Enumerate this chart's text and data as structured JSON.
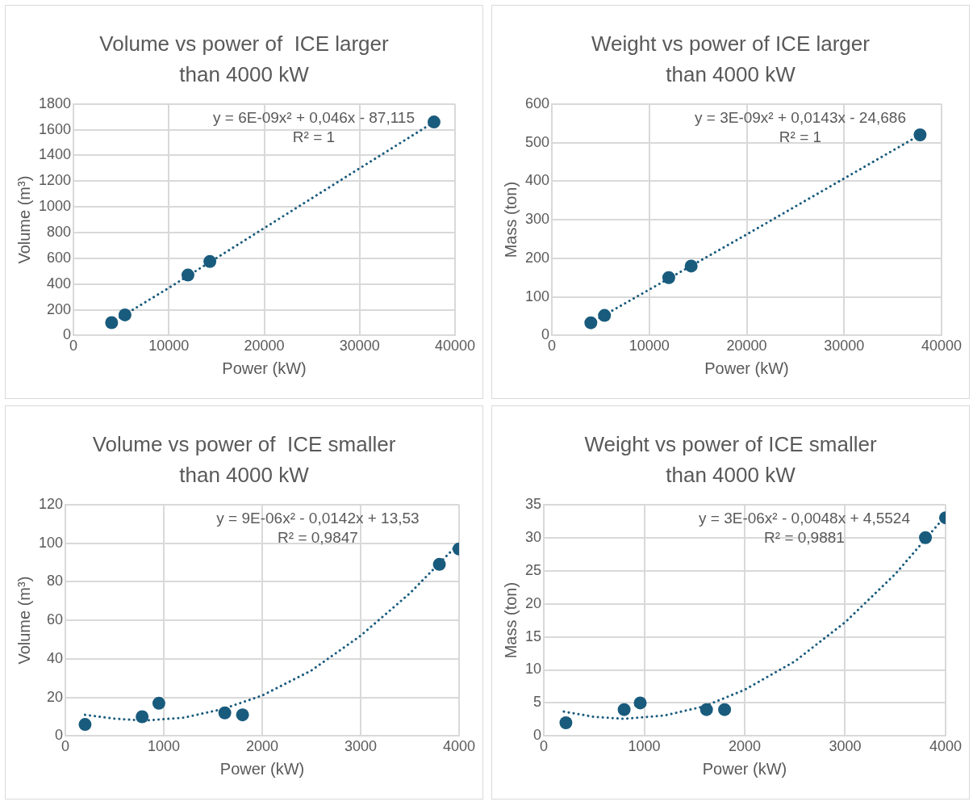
{
  "chart_data": [
    {
      "type": "scatter",
      "title": "Volume vs power of  ICE larger than 4000 kW",
      "xlabel": "Power (kW)",
      "ylabel": "Volume (m³)",
      "xlim": [
        0,
        40000
      ],
      "xticks": [
        0,
        10000,
        20000,
        30000,
        40000
      ],
      "ylim": [
        0,
        1800
      ],
      "yticks": [
        0,
        200,
        400,
        600,
        800,
        1000,
        1200,
        1400,
        1600,
        1800
      ],
      "grid": true,
      "legend": false,
      "series": [
        {
          "type": "scatter",
          "color": "#195b7d",
          "marker": "circle",
          "x": [
            4000,
            5400,
            12000,
            14300,
            37800
          ],
          "values": [
            100,
            160,
            470,
            575,
            1660
          ]
        },
        {
          "type": "line",
          "color": "#195b7d",
          "marker": "none",
          "line_style": "dotted",
          "x": [
            4000,
            10000,
            20000,
            30000,
            37800
          ],
          "values": [
            100,
            370,
            835,
            1300,
            1660
          ]
        }
      ],
      "annotations": [
        "y = 6E-09x² + 0,046x - 87,115",
        "R² = 1"
      ]
    },
    {
      "type": "scatter",
      "title": "Weight vs power of ICE larger than 4000 kW",
      "xlabel": "Power (kW)",
      "ylabel": "Mass (ton)",
      "xlim": [
        0,
        40000
      ],
      "xticks": [
        0,
        10000,
        20000,
        30000,
        40000
      ],
      "ylim": [
        0,
        600
      ],
      "yticks": [
        0,
        100,
        200,
        300,
        400,
        500,
        600
      ],
      "grid": true,
      "legend": false,
      "series": [
        {
          "type": "scatter",
          "color": "#195b7d",
          "marker": "circle",
          "x": [
            4000,
            5400,
            12000,
            14300,
            37800
          ],
          "values": [
            33,
            52,
            150,
            180,
            520
          ]
        },
        {
          "type": "line",
          "color": "#195b7d",
          "marker": "none",
          "line_style": "dotted",
          "x": [
            4000,
            10000,
            20000,
            30000,
            37800
          ],
          "values": [
            33,
            119,
            262,
            407,
            520
          ]
        }
      ],
      "annotations": [
        "y = 3E-09x² + 0,0143x - 24,686",
        "R² = 1"
      ]
    },
    {
      "type": "scatter",
      "title": "Volume vs power of  ICE smaller than 4000 kW",
      "xlabel": "Power (kW)",
      "ylabel": "Volume (m³)",
      "xlim": [
        0,
        4000
      ],
      "xticks": [
        0,
        1000,
        2000,
        3000,
        4000
      ],
      "ylim": [
        0,
        120
      ],
      "yticks": [
        0,
        20,
        40,
        60,
        80,
        100,
        120
      ],
      "grid": true,
      "legend": false,
      "series": [
        {
          "type": "scatter",
          "color": "#195b7d",
          "marker": "circle",
          "x": [
            200,
            780,
            950,
            1620,
            1800,
            3800,
            4000
          ],
          "values": [
            6,
            10,
            17,
            12,
            11,
            89,
            97
          ]
        },
        {
          "type": "line",
          "color": "#195b7d",
          "marker": "none",
          "line_style": "dotted",
          "x": [
            200,
            500,
            800,
            1200,
            1600,
            2000,
            2500,
            3000,
            3500,
            4000
          ],
          "values": [
            11,
            9,
            8,
            9.5,
            14,
            21,
            34,
            52,
            74,
            100
          ]
        }
      ],
      "annotations": [
        "y = 9E-06x² - 0,0142x + 13,53",
        "R² = 0,9847"
      ]
    },
    {
      "type": "scatter",
      "title": "Weight vs power of ICE smaller than 4000 kW",
      "xlabel": "Power (kW)",
      "ylabel": "Mass (ton)",
      "xlim": [
        0,
        4000
      ],
      "xticks": [
        0,
        1000,
        2000,
        3000,
        4000
      ],
      "ylim": [
        0,
        35
      ],
      "yticks": [
        0,
        5,
        10,
        15,
        20,
        25,
        30,
        35
      ],
      "grid": true,
      "legend": false,
      "series": [
        {
          "type": "scatter",
          "color": "#195b7d",
          "marker": "circle",
          "x": [
            220,
            800,
            960,
            1620,
            1800,
            3800,
            4000
          ],
          "values": [
            2,
            4,
            5,
            4,
            4,
            30,
            33
          ]
        },
        {
          "type": "line",
          "color": "#195b7d",
          "marker": "none",
          "line_style": "dotted",
          "x": [
            200,
            500,
            800,
            1200,
            1600,
            2000,
            2500,
            3000,
            3500,
            4000
          ],
          "values": [
            3.7,
            2.9,
            2.6,
            3.1,
            4.5,
            7,
            11.3,
            17.2,
            24.5,
            33.3
          ]
        }
      ],
      "annotations": [
        "y = 3E-06x² - 0,0048x + 4,5524",
        "R² = 0,9881"
      ]
    }
  ]
}
